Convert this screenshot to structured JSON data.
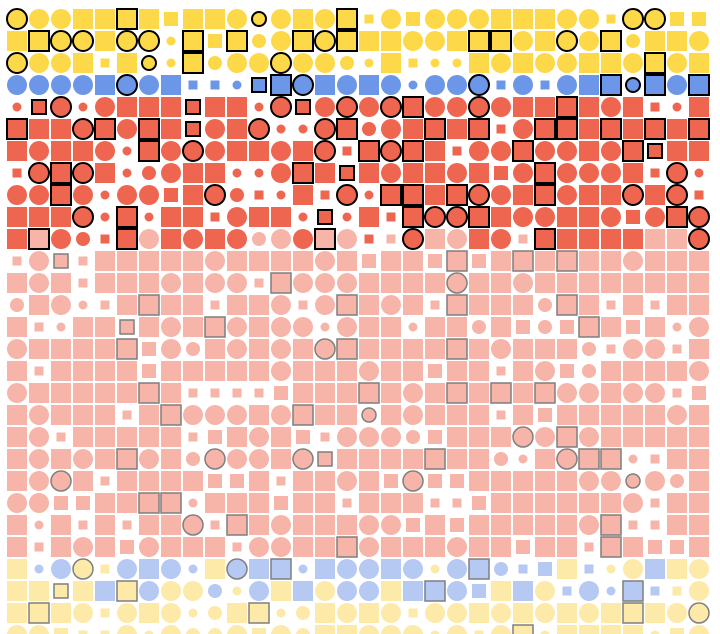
{
  "colors": {
    "background": "#ffffff",
    "yellow": "#fdd94a",
    "blue": "#6c96e8",
    "red": "#ee6550",
    "outline_dark": "#000000",
    "pink": "#f6b5a8",
    "light_blue": "#b6c9f3",
    "light_yellow": "#fde9a8",
    "outline_muted": "#7f7f7f"
  },
  "bands": [
    {
      "rows": 3,
      "palette": "yellow",
      "outlined": "dark",
      "cells": "mixed"
    },
    {
      "rows": 1,
      "palette": "blue",
      "outlined": "dark",
      "cells": "mostly-circles"
    },
    {
      "rows": 7,
      "palette": "red",
      "outlined": "dark",
      "cells": "mixed"
    },
    {
      "rows": 14,
      "palette": "pink",
      "outlined": "muted",
      "cells": "mostly-squares"
    },
    {
      "rows": 2,
      "palette": "light_blue",
      "outlined": "muted",
      "cells": "mixed",
      "blend_into": "light_yellow"
    },
    {
      "rows": 2,
      "palette": "light_yellow",
      "outlined": "muted",
      "cells": "mixed"
    }
  ],
  "grid": {
    "columns": 32,
    "rows": 29
  }
}
